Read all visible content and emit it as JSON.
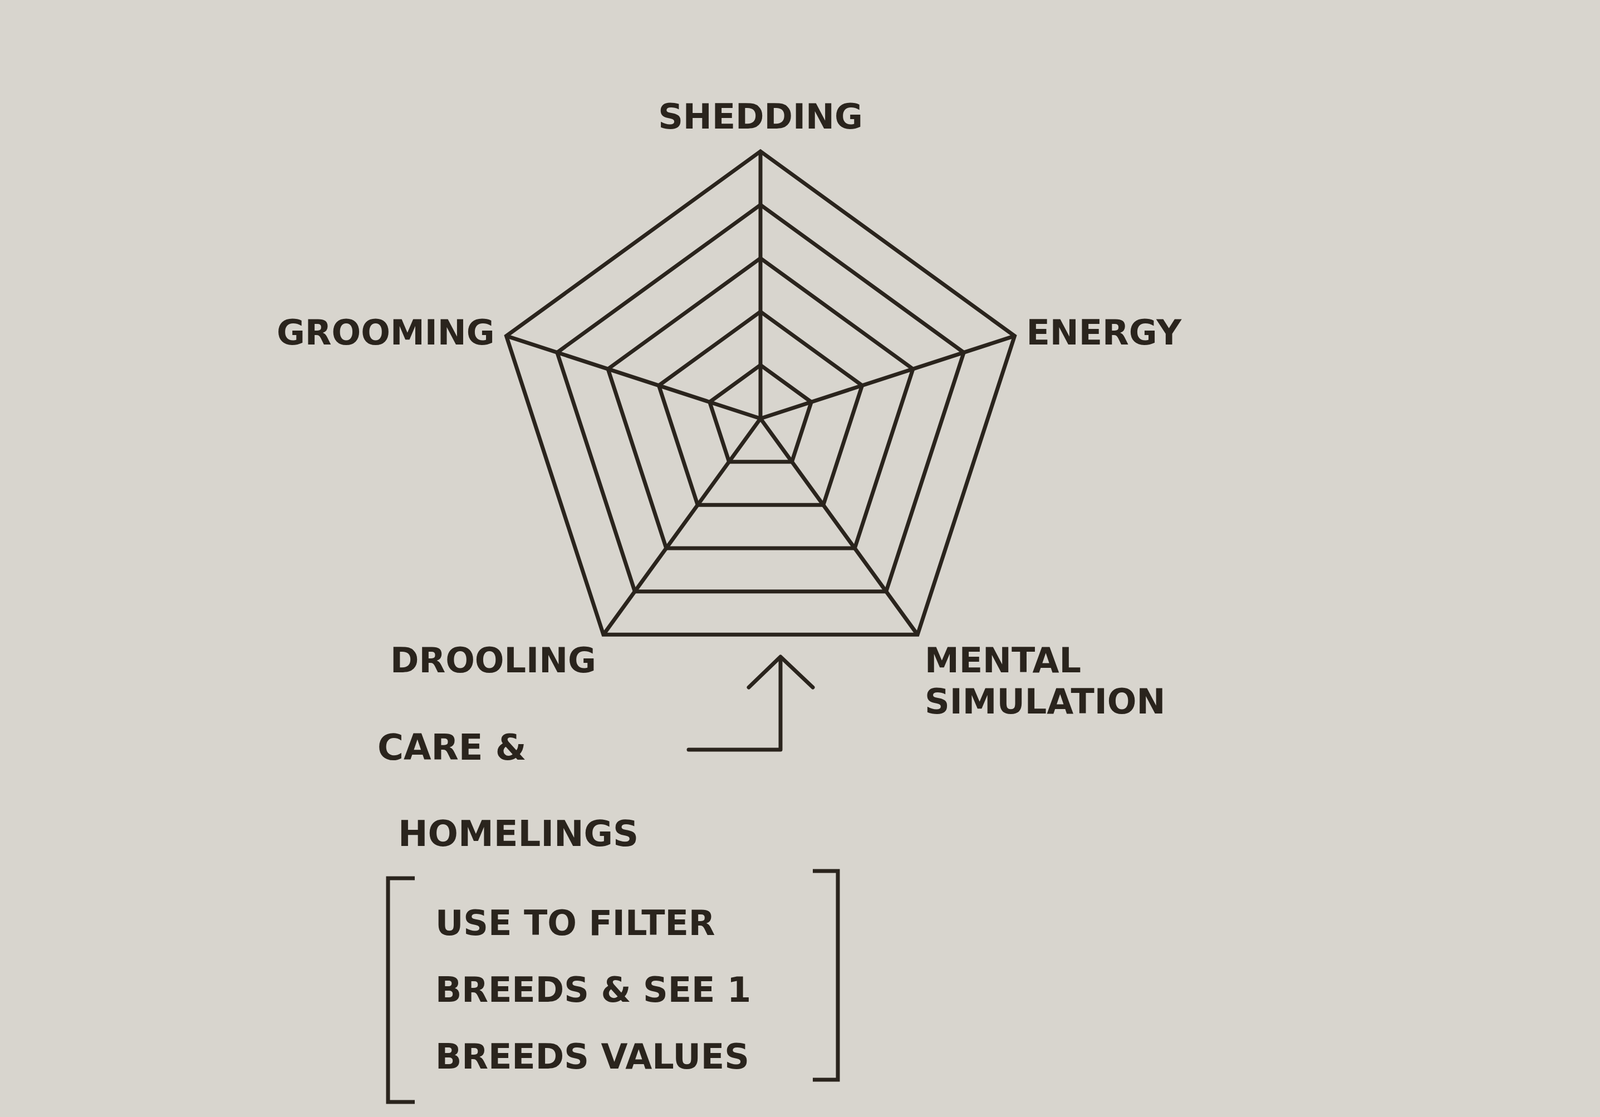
{
  "chart_data": {
    "type": "radar",
    "categories": [
      "SHEDDING",
      "ENERGY",
      "MENTAL SIMULATION",
      "DROOLING",
      "GROOMING"
    ],
    "ylim": [
      0,
      5
    ],
    "yticks": [
      1,
      2,
      3,
      4,
      5
    ],
    "grid": true,
    "tick_labels": false,
    "annotations": [
      [
        "CARE &",
        "HOMELINGS"
      ],
      [
        "USE TO FILTER",
        "BREEDS & SEE 1",
        "BREEDS VALUES"
      ]
    ]
  }
}
